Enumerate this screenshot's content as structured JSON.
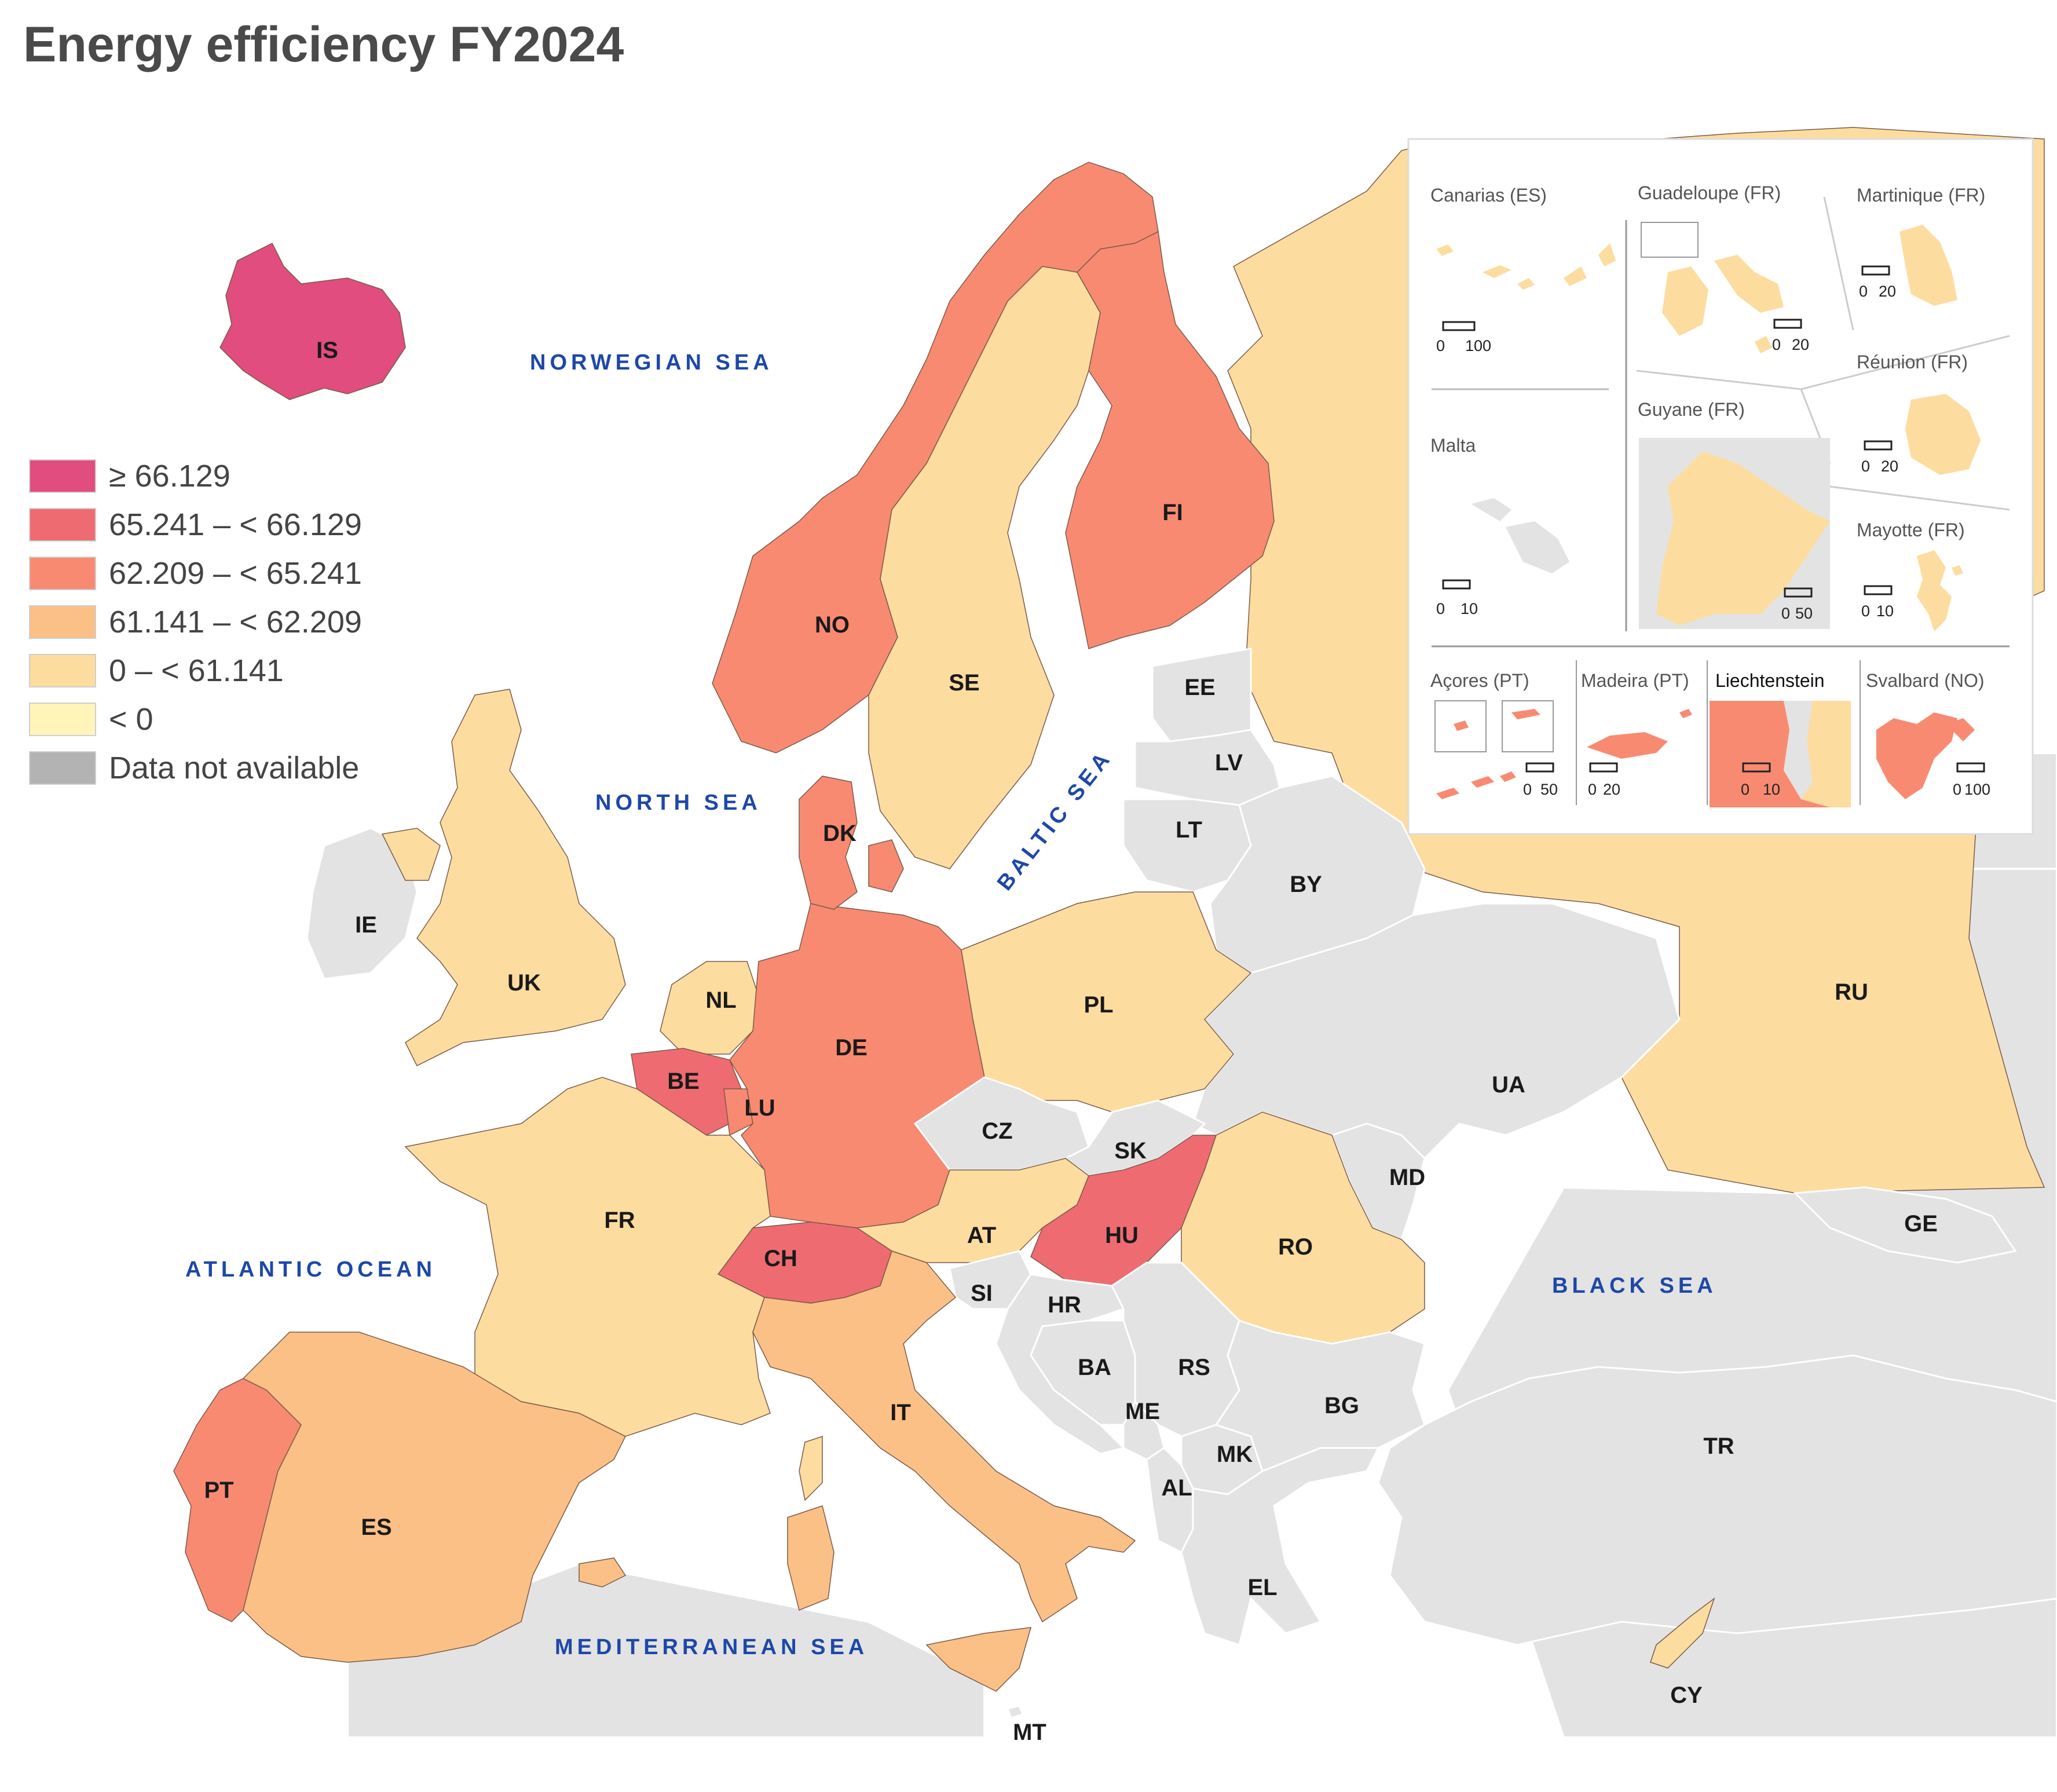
{
  "title": "Energy efficiency FY2024",
  "colors": {
    "class1": "#e04d7e",
    "class2": "#ef6b72",
    "class3": "#f88a72",
    "class4": "#fbc085",
    "class5": "#fddc9f",
    "class6": "#fff5b8",
    "na": "#b3b3b3",
    "na_land": "#e3e3e3",
    "sea": "#ffffff"
  },
  "legend": [
    {
      "label": "≥ 66.129",
      "color": "#e04d7e"
    },
    {
      "label": "65.241 – < 66.129",
      "color": "#ef6b72"
    },
    {
      "label": "62.209 – < 65.241",
      "color": "#f88a72"
    },
    {
      "label": "61.141 – < 62.209",
      "color": "#fbc085"
    },
    {
      "label": "0 – < 61.141",
      "color": "#fddc9f"
    },
    {
      "label": "< 0",
      "color": "#fff5b8"
    },
    {
      "label": "Data not available",
      "color": "#b3b3b3"
    }
  ],
  "seas": {
    "norwegian": "NORWEGIAN SEA",
    "north": "NORTH SEA",
    "baltic": "BALTIC SEA",
    "atlantic": "ATLANTIC OCEAN",
    "black": "BLACK SEA",
    "mediterranean": "MEDITERRANEAN SEA"
  },
  "countries": {
    "IS": {
      "code": "IS",
      "class": "class1"
    },
    "NO": {
      "code": "NO",
      "class": "class3"
    },
    "SE": {
      "code": "SE",
      "class": "class5"
    },
    "FI": {
      "code": "FI",
      "class": "class3"
    },
    "DK": {
      "code": "DK",
      "class": "class3"
    },
    "EE": {
      "code": "EE",
      "class": "na"
    },
    "LV": {
      "code": "LV",
      "class": "na"
    },
    "LT": {
      "code": "LT",
      "class": "na"
    },
    "BY": {
      "code": "BY",
      "class": "na"
    },
    "RU": {
      "code": "RU",
      "class": "class5"
    },
    "IE": {
      "code": "IE",
      "class": "na"
    },
    "UK": {
      "code": "UK",
      "class": "class5"
    },
    "NL": {
      "code": "NL",
      "class": "class5"
    },
    "BE": {
      "code": "BE",
      "class": "class2"
    },
    "LU": {
      "code": "LU",
      "class": "class3"
    },
    "DE": {
      "code": "DE",
      "class": "class3"
    },
    "PL": {
      "code": "PL",
      "class": "class5"
    },
    "UA": {
      "code": "UA",
      "class": "na"
    },
    "CZ": {
      "code": "CZ",
      "class": "na"
    },
    "SK": {
      "code": "SK",
      "class": "na"
    },
    "MD": {
      "code": "MD",
      "class": "na"
    },
    "FR": {
      "code": "FR",
      "class": "class5"
    },
    "CH": {
      "code": "CH",
      "class": "class2"
    },
    "AT": {
      "code": "AT",
      "class": "class5"
    },
    "HU": {
      "code": "HU",
      "class": "class2"
    },
    "RO": {
      "code": "RO",
      "class": "class5"
    },
    "SI": {
      "code": "SI",
      "class": "na"
    },
    "HR": {
      "code": "HR",
      "class": "na"
    },
    "BA": {
      "code": "BA",
      "class": "na"
    },
    "RS": {
      "code": "RS",
      "class": "na"
    },
    "ME": {
      "code": "ME",
      "class": "na"
    },
    "MK": {
      "code": "MK",
      "class": "na"
    },
    "AL": {
      "code": "AL",
      "class": "na"
    },
    "BG": {
      "code": "BG",
      "class": "na"
    },
    "EL": {
      "code": "EL",
      "class": "na"
    },
    "TR": {
      "code": "TR",
      "class": "na"
    },
    "GE": {
      "code": "GE",
      "class": "na"
    },
    "CY": {
      "code": "CY",
      "class": "class5"
    },
    "PT": {
      "code": "PT",
      "class": "class3"
    },
    "ES": {
      "code": "ES",
      "class": "class4"
    },
    "IT": {
      "code": "IT",
      "class": "class4"
    },
    "MT": {
      "code": "MT",
      "class": "na"
    }
  },
  "insets": {
    "canarias": {
      "title": "Canarias (ES)",
      "scale_a": "0",
      "scale_b": "100"
    },
    "guadeloupe": {
      "title": "Guadeloupe (FR)",
      "scale_a": "0",
      "scale_b": "20"
    },
    "martinique": {
      "title": "Martinique (FR)",
      "scale_a": "0",
      "scale_b": "20"
    },
    "reunion": {
      "title": "Réunion (FR)",
      "scale_a": "0",
      "scale_b": "20"
    },
    "malta": {
      "title": "Malta",
      "scale_a": "0",
      "scale_b": "10"
    },
    "guyane": {
      "title": "Guyane (FR)",
      "scale_a": "0",
      "scale_b": "50"
    },
    "mayotte": {
      "title": "Mayotte (FR)",
      "scale_a": "0",
      "scale_b": "10"
    },
    "acores": {
      "title": "Açores (PT)",
      "scale_a": "0",
      "scale_b": "50"
    },
    "madeira": {
      "title": "Madeira (PT)",
      "scale_a": "0",
      "scale_b": "20"
    },
    "liechtenstein": {
      "title": "Liechtenstein",
      "scale_a": "0",
      "scale_b": "10"
    },
    "svalbard": {
      "title": "Svalbard (NO)",
      "scale_a": "0",
      "scale_b": "100"
    }
  }
}
